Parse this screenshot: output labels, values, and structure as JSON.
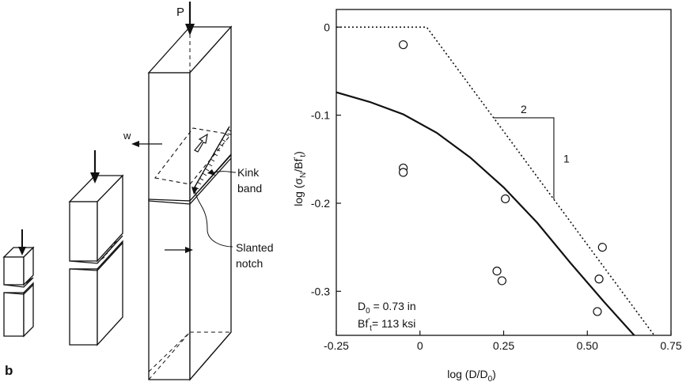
{
  "figure": {
    "panel_label": "b"
  },
  "specimen": {
    "load_label": "P",
    "width_label": "w",
    "kink_band_label": [
      "Kink",
      "band"
    ],
    "notch_label": [
      "Slanted",
      "notch"
    ]
  },
  "chart_data": {
    "type": "scatter",
    "xlabel": "log (D/D",
    "xlabel_sub": "0",
    "xlabel_end": ")",
    "ylabel": "log (σ",
    "ylabel_sub": "N",
    "ylabel_mid": "/Bf",
    "ylabel_sup": "'",
    "ylabel_sub2": "t",
    "ylabel_end": ")",
    "xlim": [
      -0.25,
      0.75
    ],
    "ylim": [
      -0.35,
      0.02
    ],
    "xticks": [
      -0.25,
      0,
      0.25,
      0.5,
      0.75
    ],
    "xtick_labels": [
      "-0.25",
      "0",
      "0.25",
      "0.50",
      "0.75"
    ],
    "yticks": [
      0,
      -0.1,
      -0.2,
      -0.3
    ],
    "ytick_labels": [
      "0",
      "-0.1",
      "-0.2",
      "-0.3"
    ],
    "points": [
      {
        "x": -0.05,
        "y": -0.02
      },
      {
        "x": -0.05,
        "y": -0.16
      },
      {
        "x": -0.05,
        "y": -0.165
      },
      {
        "x": 0.255,
        "y": -0.195
      },
      {
        "x": 0.23,
        "y": -0.277
      },
      {
        "x": 0.245,
        "y": -0.288
      },
      {
        "x": 0.545,
        "y": -0.25
      },
      {
        "x": 0.535,
        "y": -0.286
      },
      {
        "x": 0.53,
        "y": -0.323
      }
    ],
    "curve": [
      {
        "x": -0.25,
        "y": -0.074
      },
      {
        "x": -0.15,
        "y": -0.085
      },
      {
        "x": -0.05,
        "y": -0.099
      },
      {
        "x": 0.05,
        "y": -0.12
      },
      {
        "x": 0.15,
        "y": -0.148
      },
      {
        "x": 0.25,
        "y": -0.182
      },
      {
        "x": 0.35,
        "y": -0.222
      },
      {
        "x": 0.45,
        "y": -0.268
      },
      {
        "x": 0.55,
        "y": -0.312
      },
      {
        "x": 0.64,
        "y": -0.35
      }
    ],
    "asymptote": [
      {
        "x": -0.25,
        "y": 0.0
      },
      {
        "x": 0.02,
        "y": 0.0
      },
      {
        "x": 0.7,
        "y": -0.35
      }
    ],
    "slope_label_top": "2",
    "slope_label_side": "1",
    "annotation_d0": "D",
    "annotation_d0_sub": "0",
    "annotation_d0_val": " = 0.73 in",
    "annotation_bft": "Bf",
    "annotation_bft_sup": "'",
    "annotation_bft_sub": "t",
    "annotation_bft_val": "= 113 ksi"
  }
}
